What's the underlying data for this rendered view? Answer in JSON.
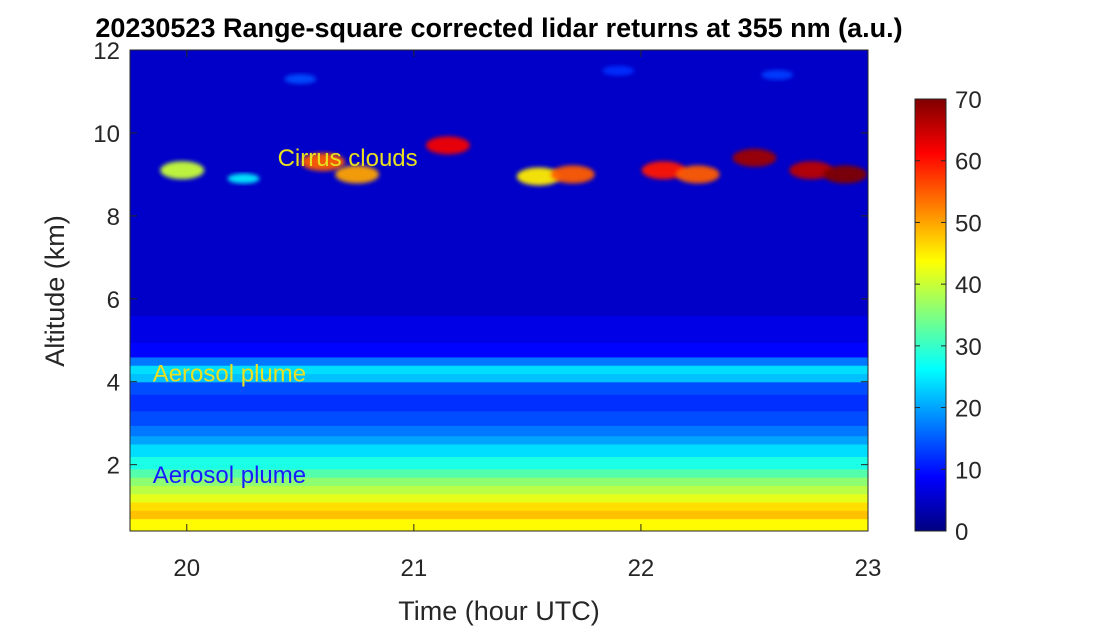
{
  "chart_data": {
    "type": "heatmap",
    "title": "20230523  Range-square corrected lidar returns at 355 nm (a.u.)",
    "xlabel": "Time (hour UTC)",
    "ylabel": "Altitude (km)",
    "xlim": [
      19.75,
      23.0
    ],
    "ylim": [
      0.4,
      12.0
    ],
    "xticks": [
      {
        "value": 20,
        "label": "20"
      },
      {
        "value": 21,
        "label": "21"
      },
      {
        "value": 22,
        "label": "22"
      },
      {
        "value": 23,
        "label": "23"
      }
    ],
    "yticks": [
      {
        "value": 2,
        "label": "2"
      },
      {
        "value": 4,
        "label": "4"
      },
      {
        "value": 6,
        "label": "6"
      },
      {
        "value": 8,
        "label": "8"
      },
      {
        "value": 10,
        "label": "10"
      },
      {
        "value": 12,
        "label": "12"
      }
    ],
    "colorbar": {
      "colormap": "jet",
      "range": [
        0,
        70
      ],
      "ticks": [
        {
          "value": 0,
          "label": "0"
        },
        {
          "value": 10,
          "label": "10"
        },
        {
          "value": 20,
          "label": "20"
        },
        {
          "value": 30,
          "label": "30"
        },
        {
          "value": 40,
          "label": "40"
        },
        {
          "value": 50,
          "label": "50"
        },
        {
          "value": 60,
          "label": "60"
        },
        {
          "value": 70,
          "label": "70"
        }
      ]
    },
    "annotations": [
      {
        "text": "Cirrus clouds",
        "x": 20.4,
        "y": 9.4,
        "color": "#e8e020"
      },
      {
        "text": "Aerosol plume",
        "x": 19.85,
        "y": 4.2,
        "color": "#e8e020"
      },
      {
        "text": "Aerosol plume",
        "x": 19.85,
        "y": 1.75,
        "color": "#1a1aff"
      }
    ],
    "layers": [
      {
        "altitude": 0.6,
        "value": 44
      },
      {
        "altitude": 0.8,
        "value": 48
      },
      {
        "altitude": 1.0,
        "value": 46
      },
      {
        "altitude": 1.2,
        "value": 42
      },
      {
        "altitude": 1.4,
        "value": 39
      },
      {
        "altitude": 1.6,
        "value": 36
      },
      {
        "altitude": 1.8,
        "value": 32
      },
      {
        "altitude": 2.0,
        "value": 28
      },
      {
        "altitude": 2.4,
        "value": 24
      },
      {
        "altitude": 2.6,
        "value": 20
      },
      {
        "altitude": 2.8,
        "value": 17
      },
      {
        "altitude": 3.1,
        "value": 14
      },
      {
        "altitude": 3.5,
        "value": 12
      },
      {
        "altitude": 3.9,
        "value": 14
      },
      {
        "altitude": 4.1,
        "value": 22
      },
      {
        "altitude": 4.3,
        "value": 24
      },
      {
        "altitude": 4.5,
        "value": 17
      },
      {
        "altitude": 4.7,
        "value": 9
      },
      {
        "altitude": 5.2,
        "value": 7
      },
      {
        "altitude": 6.0,
        "value": 5
      },
      {
        "altitude": 8.0,
        "value": 5
      },
      {
        "altitude": 10.0,
        "value": 5
      },
      {
        "altitude": 12.0,
        "value": 5
      }
    ],
    "cirrus_patches": [
      {
        "x": 19.98,
        "y": 9.1,
        "value": 40
      },
      {
        "x": 20.25,
        "y": 8.9,
        "value": 25
      },
      {
        "x": 20.6,
        "y": 9.3,
        "value": 55
      },
      {
        "x": 20.75,
        "y": 9.0,
        "value": 50
      },
      {
        "x": 21.15,
        "y": 9.7,
        "value": 62
      },
      {
        "x": 21.55,
        "y": 8.95,
        "value": 45
      },
      {
        "x": 21.7,
        "y": 9.0,
        "value": 55
      },
      {
        "x": 22.1,
        "y": 9.1,
        "value": 60
      },
      {
        "x": 22.25,
        "y": 9.0,
        "value": 55
      },
      {
        "x": 22.5,
        "y": 9.4,
        "value": 68
      },
      {
        "x": 22.75,
        "y": 9.1,
        "value": 66
      },
      {
        "x": 22.9,
        "y": 9.0,
        "value": 70
      },
      {
        "x": 20.5,
        "y": 11.3,
        "value": 14
      },
      {
        "x": 21.9,
        "y": 11.5,
        "value": 12
      },
      {
        "x": 22.6,
        "y": 11.4,
        "value": 13
      }
    ]
  }
}
